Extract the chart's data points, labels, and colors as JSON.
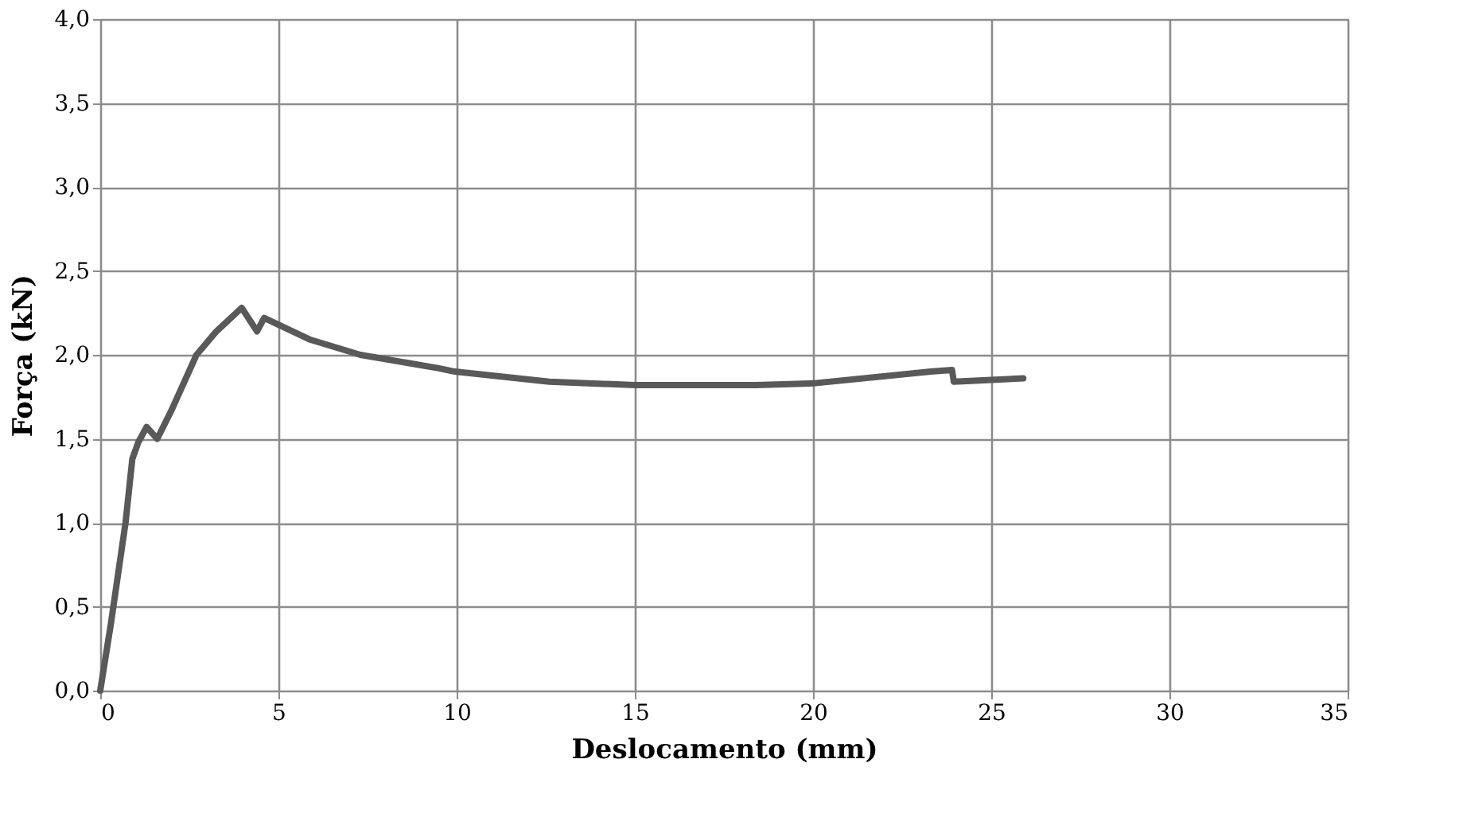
{
  "chart_data": {
    "type": "line",
    "xlabel": "Deslocamento (mm)",
    "ylabel": "Força (kN)",
    "xlim": [
      0,
      35
    ],
    "xticks": [
      0,
      5,
      10,
      15,
      20,
      25,
      30,
      35
    ],
    "ylim": [
      0,
      4
    ],
    "yticks": [
      {
        "value": 0,
        "label": "0,0"
      },
      {
        "value": 0.5,
        "label": "0,5"
      },
      {
        "value": 1,
        "label": "1,0"
      },
      {
        "value": 1.5,
        "label": "1,5"
      },
      {
        "value": 2,
        "label": "2,0"
      },
      {
        "value": 2.5,
        "label": "2,5"
      },
      {
        "value": 3,
        "label": "3,0"
      },
      {
        "value": 3.5,
        "label": "3,5"
      },
      {
        "value": 4,
        "label": "4,0"
      }
    ],
    "grid": true,
    "marker": "none",
    "line_style": "solid",
    "series": [
      {
        "color": "#595959",
        "x": [
          0,
          0.3,
          0.71,
          0.9,
          1.07,
          1.3,
          1.6,
          2.0,
          2.7,
          3.26,
          3.97,
          4.4,
          4.6,
          5.9,
          7.3,
          9.5,
          9.95,
          12.6,
          15,
          18.4,
          20.0,
          23.3,
          23.9,
          23.95,
          25.9
        ],
        "values": [
          0,
          0.4,
          1.0,
          1.38,
          1.48,
          1.57,
          1.5,
          1.67,
          2.0,
          2.14,
          2.28,
          2.14,
          2.22,
          2.09,
          2.0,
          1.92,
          1.9,
          1.84,
          1.82,
          1.82,
          1.83,
          1.9,
          1.91,
          1.84,
          1.86
        ]
      }
    ]
  }
}
